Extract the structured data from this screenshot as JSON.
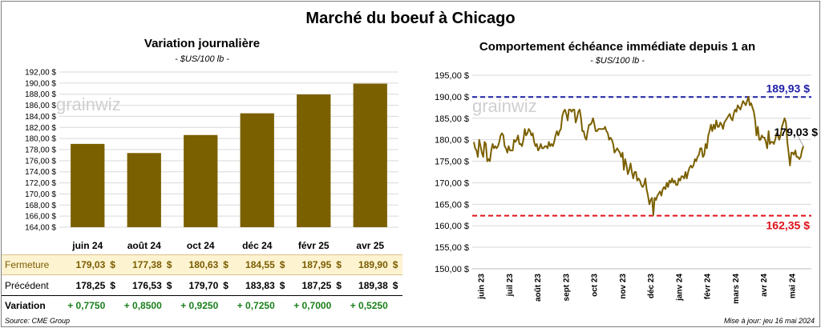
{
  "title": "Marché du boeuf à Chicago",
  "left": {
    "title": "Variation  journalière",
    "subtitle": "- $US/100 lb -",
    "watermark": "grainwiz"
  },
  "right": {
    "title": "Comportement  échéance immédiate depuis 1 an",
    "subtitle": "- $US/100 lb -",
    "watermark": "grainwiz"
  },
  "table": {
    "row_labels": [
      "Fermeture",
      "Précédent",
      "Variation"
    ],
    "currency": "$",
    "months": [
      "juin 24",
      "août 24",
      "oct 24",
      "déc 24",
      "févr 25",
      "avr 25"
    ],
    "close": [
      "179,03",
      "177,38",
      "180,63",
      "184,55",
      "187,95",
      "189,90"
    ],
    "previous": [
      "178,25",
      "176,53",
      "179,70",
      "183,83",
      "187,25",
      "189,38"
    ],
    "variation": [
      "+ 0,7750",
      "+ 0,8500",
      "+ 0,9250",
      "+ 0,7250",
      "+ 0,7000",
      "+ 0,5250"
    ]
  },
  "footer": {
    "source": "Source: CME Group",
    "update": "Mise à jour: jeu 16 mai 2024"
  },
  "colors": {
    "bar": "#7b6000",
    "line": "#7b6000",
    "high_line": "#1f1faa",
    "low_line": "#e0101a",
    "variation_text": "#1a7f1a"
  },
  "chart_data": [
    {
      "type": "bar",
      "title": "Variation  journalière",
      "subtitle": "- $US/100 lb -",
      "categories": [
        "juin 24",
        "août 24",
        "oct 24",
        "déc 24",
        "févr 25",
        "avr 25"
      ],
      "values": [
        179.03,
        177.38,
        180.63,
        184.55,
        187.95,
        189.9
      ],
      "ylim": [
        164,
        192
      ],
      "yticks": [
        "164,00 $",
        "166,00 $",
        "168,00 $",
        "170,00 $",
        "172,00 $",
        "174,00 $",
        "176,00 $",
        "178,00 $",
        "180,00 $",
        "182,00 $",
        "184,00 $",
        "186,00 $",
        "188,00 $",
        "190,00 $",
        "192,00 $"
      ],
      "grid": true
    },
    {
      "type": "line",
      "title": "Comportement  échéance immédiate depuis 1 an",
      "subtitle": "- $US/100 lb -",
      "x_labels": [
        "juin 23",
        "juil 23",
        "août 23",
        "sept 23",
        "oct 23",
        "nov 23",
        "déc 23",
        "janv 24",
        "févr 24",
        "mars 24",
        "avr 24",
        "mai 24"
      ],
      "ylim": [
        150,
        195
      ],
      "yticks": [
        "150,00 $",
        "155,00 $",
        "160,00 $",
        "165,00 $",
        "170,00 $",
        "175,00 $",
        "180,00 $",
        "185,00 $",
        "190,00 $",
        "195,00 $"
      ],
      "high": {
        "value": 189.93,
        "label": "189,93 $"
      },
      "low": {
        "value": 162.35,
        "label": "162,35 $"
      },
      "last": {
        "value": 179.03,
        "label": "179,03 $"
      },
      "grid": true,
      "values": [
        179.5,
        178.0,
        177.5,
        176.0,
        180.0,
        178.5,
        177.0,
        176.0,
        179.5,
        179.0,
        175.0,
        175.5,
        175.0,
        177.5,
        179.0,
        178.0,
        178.5,
        178.0,
        178.5,
        179.5,
        181.0,
        181.5,
        181.0,
        178.5,
        178.0,
        177.0,
        178.5,
        177.5,
        177.5,
        177.5,
        180.0,
        179.5,
        180.0,
        181.0,
        179.0,
        179.0,
        178.5,
        180.0,
        182.5,
        181.0,
        181.5,
        182.5,
        182.0,
        181.0,
        181.5,
        179.5,
        178.5,
        179.0,
        177.5,
        178.0,
        179.0,
        178.0,
        178.0,
        178.5,
        178.5,
        178.0,
        179.5,
        178.5,
        179.0,
        178.5,
        179.5,
        181.0,
        182.0,
        181.0,
        182.0,
        182.5,
        185.5,
        186.5,
        187.0,
        186.0,
        184.5,
        187.0,
        187.0,
        186.5,
        187.0,
        187.0,
        184.0,
        185.0,
        186.5,
        187.0,
        185.0,
        182.0,
        182.0,
        180.5,
        180.0,
        182.0,
        183.5,
        183.5,
        184.0,
        185.0,
        183.5,
        182.0,
        182.0,
        182.5,
        182.5,
        182.5,
        182.5,
        182.5,
        183.0,
        182.0,
        181.5,
        180.0,
        180.5,
        180.0,
        179.0,
        177.0,
        177.5,
        178.0,
        177.5,
        177.0,
        176.0,
        177.0,
        173.0,
        175.5,
        174.0,
        172.0,
        173.0,
        174.5,
        172.5,
        171.0,
        172.5,
        172.5,
        170.5,
        171.0,
        170.5,
        169.5,
        169.0,
        169.5,
        171.0,
        168.5,
        167.0,
        165.0,
        166.0,
        166.5,
        162.5,
        166.5,
        166.0,
        167.0,
        167.5,
        168.0,
        167.0,
        168.5,
        169.0,
        168.5,
        170.0,
        169.0,
        170.5,
        170.0,
        171.0,
        170.0,
        170.5,
        169.5,
        169.5,
        171.0,
        170.5,
        171.5,
        171.5,
        171.0,
        172.5,
        171.0,
        172.5,
        173.5,
        174.0,
        173.5,
        174.0,
        175.5,
        175.0,
        176.0,
        176.5,
        178.0,
        178.0,
        176.0,
        176.5,
        179.0,
        178.0,
        181.0,
        182.0,
        183.5,
        182.0,
        183.5,
        182.5,
        184.5,
        183.0,
        183.0,
        184.0,
        183.5,
        182.5,
        184.0,
        184.5,
        185.0,
        185.5,
        186.0,
        185.0,
        184.5,
        186.0,
        187.0,
        186.5,
        188.0,
        187.5,
        187.0,
        188.0,
        189.0,
        188.5,
        188.0,
        189.0,
        190.0,
        188.0,
        188.5,
        187.5,
        186.5,
        184.5,
        181.0,
        183.0,
        180.0,
        180.0,
        181.0,
        180.5,
        180.5,
        179.5,
        178.0,
        182.0,
        179.0,
        179.5,
        179.5,
        179.0,
        180.0,
        181.5,
        181.0,
        180.0,
        181.0,
        183.0,
        184.0,
        185.0,
        184.0,
        179.5,
        177.0,
        174.0,
        177.0,
        177.0,
        176.5,
        177.5,
        176.0,
        176.0,
        175.5,
        176.0,
        177.5,
        178.5
      ]
    }
  ]
}
